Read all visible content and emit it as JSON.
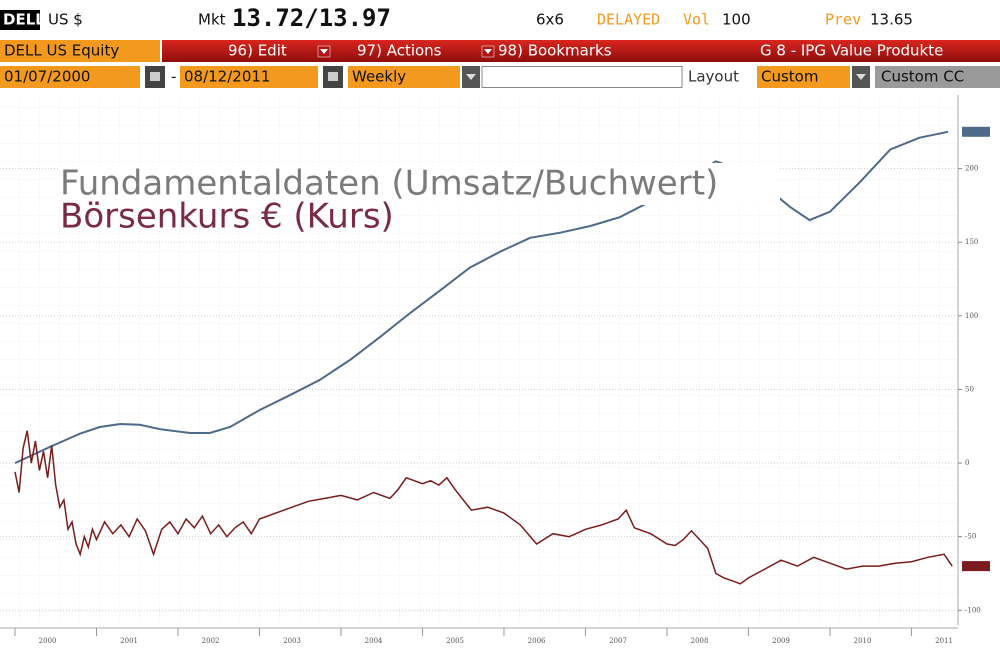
{
  "header": {
    "ticker": "DELL",
    "currency": "US $",
    "mkt_label": "Mkt",
    "quote": "13.72/13.97",
    "size": "6x6",
    "status": "DELAYED",
    "vol_label": "Vol",
    "volume": "100",
    "prev_label": "Prev",
    "prev": "13.65"
  },
  "toolbar": {
    "security": "DELL US Equity",
    "menu": [
      "96) Edit",
      "97) Actions",
      "98) Bookmarks"
    ],
    "page": "G 8 - IPG Value Produkte"
  },
  "controls": {
    "start_date": "01/07/2000",
    "separator": "-",
    "end_date": "08/12/2011",
    "frequency": "Weekly",
    "layout_label": "Layout",
    "layout": "Custom",
    "custom": "Custom CC"
  },
  "chart_data": {
    "type": "line",
    "xlim": [
      2000,
      2011.7
    ],
    "xticks": [
      2000,
      2001,
      2002,
      2003,
      2004,
      2005,
      2006,
      2007,
      2008,
      2009,
      2010,
      2011
    ],
    "ylim": [
      -110,
      250
    ],
    "yticks": [
      -100,
      -50,
      0,
      50,
      100,
      150,
      200
    ],
    "grid": true,
    "series": [
      {
        "name": "Fundamentaldaten (Umsatz/Buchwert)",
        "color": "#4d6a88",
        "x": [
          2000,
          2000.43,
          2000.8,
          2001.04,
          2001.29,
          2001.53,
          2001.78,
          2002.15,
          2002.39,
          2002.64,
          2003.0,
          2003.37,
          2003.74,
          2004.11,
          2004.48,
          2004.85,
          2005.21,
          2005.58,
          2005.95,
          2006.32,
          2006.69,
          2007.06,
          2007.42,
          2007.79,
          2008.16,
          2008.4,
          2008.6,
          2008.85,
          2009.14,
          2009.51,
          2009.75,
          2010.0,
          2010.37,
          2010.74,
          2011.1,
          2011.45
        ],
        "values": [
          0,
          11,
          20,
          24.5,
          26.5,
          26,
          23,
          20.4,
          20.4,
          24.5,
          36,
          46,
          56.5,
          70,
          85.7,
          102,
          117,
          132.7,
          143.5,
          153,
          156.5,
          161,
          167,
          177.5,
          190,
          198,
          205,
          200,
          191,
          174,
          165,
          170.7,
          191,
          213,
          221,
          225
        ]
      },
      {
        "name": "Börsenkurs € (Kurs)",
        "color": "#7a1c1c",
        "x": [
          2000.0,
          2000.05,
          2000.1,
          2000.15,
          2000.2,
          2000.25,
          2000.3,
          2000.35,
          2000.4,
          2000.45,
          2000.5,
          2000.55,
          2000.6,
          2000.65,
          2000.7,
          2000.75,
          2000.8,
          2000.85,
          2000.9,
          2000.95,
          2001.0,
          2001.1,
          2001.2,
          2001.3,
          2001.4,
          2001.5,
          2001.6,
          2001.7,
          2001.8,
          2001.9,
          2002.0,
          2002.1,
          2002.2,
          2002.3,
          2002.4,
          2002.5,
          2002.6,
          2002.7,
          2002.8,
          2002.9,
          2003.0,
          2003.2,
          2003.4,
          2003.6,
          2003.8,
          2004.0,
          2004.2,
          2004.4,
          2004.6,
          2004.7,
          2004.8,
          2004.9,
          2005.0,
          2005.1,
          2005.2,
          2005.3,
          2005.4,
          2005.5,
          2005.6,
          2005.8,
          2006.0,
          2006.2,
          2006.4,
          2006.6,
          2006.8,
          2007.0,
          2007.2,
          2007.4,
          2007.5,
          2007.6,
          2007.8,
          2008.0,
          2008.1,
          2008.2,
          2008.3,
          2008.4,
          2008.5,
          2008.6,
          2008.7,
          2008.8,
          2008.9,
          2009.0,
          2009.2,
          2009.4,
          2009.6,
          2009.8,
          2010.0,
          2010.2,
          2010.4,
          2010.6,
          2010.8,
          2011.0,
          2011.2,
          2011.4,
          2011.5
        ],
        "values": [
          -6,
          -20,
          10,
          22,
          0,
          15,
          -5,
          8,
          -10,
          12,
          -15,
          -30,
          -25,
          -45,
          -40,
          -55,
          -62,
          -50,
          -57,
          -45,
          -52,
          -40,
          -48,
          -42,
          -50,
          -38,
          -46,
          -62,
          -45,
          -40,
          -48,
          -38,
          -44,
          -36,
          -48,
          -42,
          -50,
          -44,
          -40,
          -48,
          -38,
          -34,
          -30,
          -26,
          -24,
          -22,
          -25,
          -20,
          -24,
          -18,
          -10,
          -12,
          -14,
          -12,
          -15,
          -10,
          -18,
          -25,
          -32,
          -30,
          -34,
          -42,
          -55,
          -48,
          -50,
          -45,
          -42,
          -38,
          -32,
          -44,
          -48,
          -55,
          -56,
          -52,
          -46,
          -52,
          -58,
          -75,
          -78,
          -80,
          -82,
          -78,
          -72,
          -66,
          -70,
          -64,
          -68,
          -72,
          -70,
          -70,
          -68,
          -67,
          -64,
          -62,
          -70
        ]
      }
    ]
  }
}
